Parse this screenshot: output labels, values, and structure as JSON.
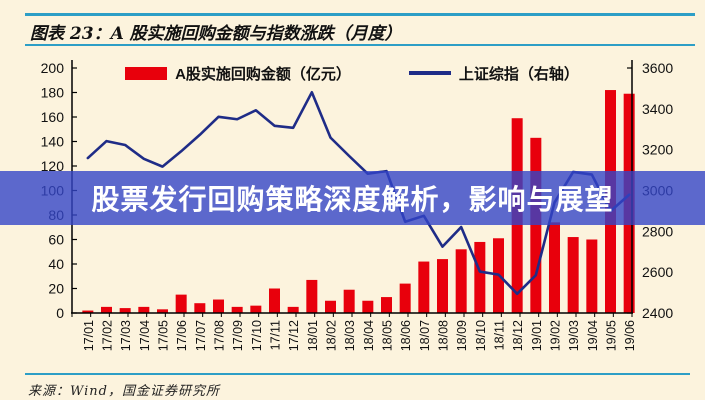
{
  "header": {
    "title": "图表 23：A 股实施回购金额与指数涨跌（月度）"
  },
  "legend": {
    "bars_label": "A股实施回购金额（亿元）",
    "line_label": "上证综指（右轴）"
  },
  "overlay": {
    "text": "股票发行回购策略深度解析，影响与展望"
  },
  "footer": {
    "source": "来源：Wind，国金证券研究所"
  },
  "colors": {
    "background": "#FCF3DD",
    "accent_teal": "#2D9EC6",
    "bar_red": "#E8000C",
    "line_navy": "#1F2C87",
    "overlay_band": "#3345C8",
    "overlay_text": "#FFFFFF"
  },
  "chart_data": {
    "type": "bar",
    "subtype": "bar+line combo",
    "title": "图表 23：A 股实施回购金额与指数涨跌（月度）",
    "categories": [
      "17/01",
      "17/02",
      "17/03",
      "17/04",
      "17/05",
      "17/06",
      "17/07",
      "17/08",
      "17/09",
      "17/10",
      "17/11",
      "17/12",
      "18/01",
      "18/02",
      "18/03",
      "18/04",
      "18/05",
      "18/06",
      "18/07",
      "18/08",
      "18/09",
      "18/10",
      "18/11",
      "18/12",
      "19/01",
      "19/02",
      "19/03",
      "19/04",
      "19/05",
      "19/06"
    ],
    "series": [
      {
        "name": "A股实施回购金额（亿元）",
        "type": "bar",
        "axis": "left",
        "color": "#E8000C",
        "values": [
          2,
          5,
          4,
          5,
          3,
          15,
          8,
          11,
          5,
          6,
          20,
          5,
          27,
          10,
          19,
          10,
          13,
          24,
          42,
          44,
          52,
          58,
          61,
          159,
          143,
          74,
          62,
          60,
          182,
          179
        ]
      },
      {
        "name": "上证综指（右轴）",
        "type": "line",
        "axis": "right",
        "color": "#1F2C87",
        "values": [
          3159,
          3242,
          3223,
          3155,
          3117,
          3192,
          3273,
          3361,
          3349,
          3393,
          3317,
          3307,
          3481,
          3259,
          3169,
          3082,
          3095,
          2847,
          2876,
          2725,
          2821,
          2603,
          2588,
          2494,
          2585,
          2941,
          3091,
          3078,
          2899,
          2979
        ]
      }
    ],
    "left_axis": {
      "min": 0,
      "max": 200,
      "step": 20
    },
    "right_axis": {
      "min": 2400,
      "max": 3600,
      "step": 200
    },
    "grid": false,
    "legend_position": "top",
    "x_labels_rotated": true
  }
}
